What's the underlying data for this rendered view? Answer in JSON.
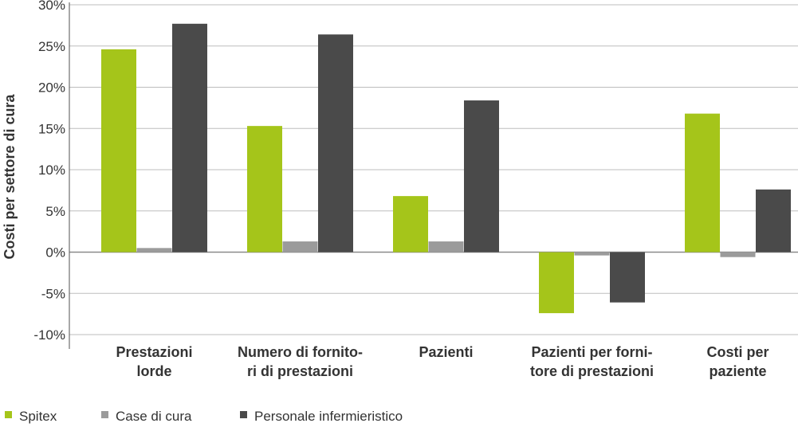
{
  "chart_data": {
    "type": "bar",
    "title": "",
    "xlabel": "",
    "ylabel": "Costi per settore di cura",
    "ylim": [
      -10,
      30
    ],
    "y_ticks": [
      30,
      25,
      20,
      15,
      10,
      5,
      0,
      -5,
      -10
    ],
    "y_tick_labels": [
      "30%",
      "25%",
      "20%",
      "15%",
      "10%",
      "5%",
      "0%",
      "-5%",
      "-10%"
    ],
    "grid": true,
    "legend_position": "bottom-left",
    "categories": [
      [
        "Prestazioni",
        "lorde"
      ],
      [
        "Numero di fornito-",
        "ri di prestazioni"
      ],
      [
        "Pazienti"
      ],
      [
        "Pazienti per forni-",
        "tore di prestazioni"
      ],
      [
        "Costi per",
        "paziente"
      ]
    ],
    "series": [
      {
        "name": "Spitex",
        "color": "#a5c51a",
        "values": [
          24.6,
          15.3,
          6.8,
          -7.4,
          16.8
        ]
      },
      {
        "name": "Case di cura",
        "color": "#9b9b9b",
        "values": [
          0.5,
          1.3,
          1.3,
          -0.4,
          -0.6
        ]
      },
      {
        "name": "Personale infermieristico",
        "color": "#4a4a4a",
        "values": [
          27.7,
          26.4,
          18.4,
          -6.1,
          7.6
        ]
      }
    ]
  }
}
